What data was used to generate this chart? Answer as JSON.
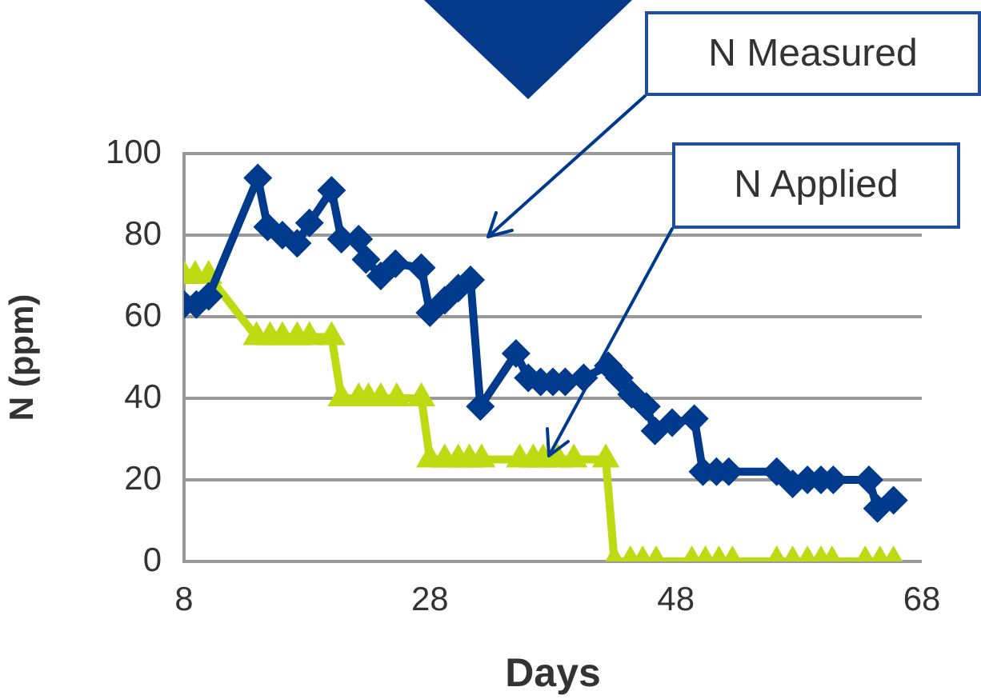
{
  "chart_data": {
    "type": "line",
    "xlabel": "Days",
    "ylabel": "N (ppm)",
    "xlim": [
      8,
      68
    ],
    "xticks": [
      8,
      28,
      48,
      68
    ],
    "ylim": [
      0,
      100
    ],
    "yticks": [
      0,
      20,
      40,
      60,
      80,
      100
    ],
    "grid": "y",
    "legend": false,
    "line_style": "solid",
    "series": [
      {
        "color": "#003a8c",
        "marker": "diamond",
        "x": [
          8,
          9,
          10,
          14,
          14.8,
          16,
          17.2,
          18.2,
          20,
          20.8,
          22.2,
          22.8,
          24,
          25.2,
          27.3,
          28,
          29.2,
          30.3,
          31.3,
          32.1,
          35,
          36,
          37,
          38,
          39,
          40.5,
          42.5,
          43.4,
          44.4,
          45.6,
          46.3,
          47.7,
          49.5,
          50.2,
          51.3,
          52.3,
          56.2,
          57.5,
          58.7,
          59.8,
          60.8,
          63.7,
          64.4,
          65.7
        ],
        "values": [
          63,
          63,
          65,
          94,
          82,
          80,
          78,
          83,
          91,
          79,
          79,
          74,
          70,
          73,
          72,
          61,
          64,
          67,
          69,
          38,
          51,
          45,
          44,
          44,
          44,
          45,
          48,
          45,
          41,
          38,
          32,
          34,
          35,
          22,
          22,
          22,
          22,
          19,
          20,
          20,
          20,
          20,
          13,
          15
        ]
      },
      {
        "color": "#bddb12",
        "marker": "triangle",
        "x": [
          8,
          8.9,
          10,
          13.9,
          15,
          16,
          17.2,
          18.2,
          20,
          20.8,
          22.2,
          23,
          24,
          25.3,
          27.3,
          28,
          29.2,
          30.3,
          31.2,
          32.2,
          35.3,
          36.4,
          37.2,
          38.4,
          39.7,
          42.3,
          43,
          44.3,
          45.3,
          46.4,
          49.3,
          50.4,
          51.5,
          52.6,
          56.2,
          57.5,
          58.7,
          59.8,
          60.7,
          63.4,
          64.6,
          65.7
        ],
        "values": [
          70,
          70,
          70,
          55,
          55,
          55,
          55,
          55,
          55,
          40,
          40,
          40,
          40,
          40,
          40,
          25,
          25,
          25,
          25,
          25,
          25,
          25,
          25,
          25,
          25,
          25,
          0,
          0,
          0,
          0,
          0,
          0,
          0,
          0,
          0,
          0,
          0,
          0,
          0,
          0,
          0,
          0
        ]
      }
    ],
    "annotations": [
      "N Measured",
      "N Applied"
    ]
  }
}
